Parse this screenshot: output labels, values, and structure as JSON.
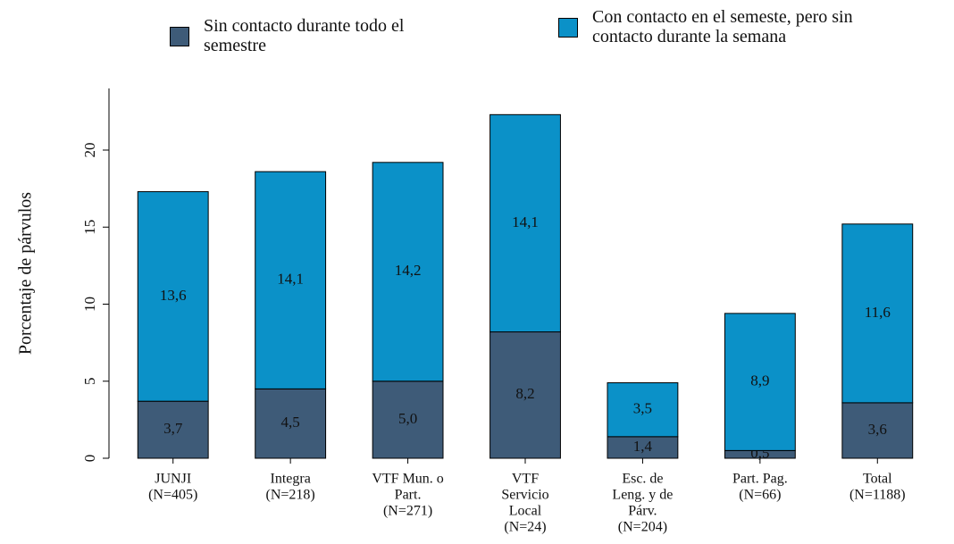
{
  "chart_data": {
    "type": "stacked_bar",
    "ylabel": "Porcentaje de párvulos",
    "categories": [
      [
        "JUNJI",
        "(N=405)"
      ],
      [
        "Integra",
        "(N=218)"
      ],
      [
        "VTF Mun. o",
        "Part.",
        "(N=271)"
      ],
      [
        "VTF",
        "Servicio",
        "Local",
        "(N=24)"
      ],
      [
        "Esc. de",
        "Leng. y de",
        "Párv.",
        "(N=204)"
      ],
      [
        "Part. Pag.",
        "(N=66)"
      ],
      [
        "Total",
        "(N=1188)"
      ]
    ],
    "series": [
      {
        "name": "Sin contacto durante todo el semestre",
        "color": "#3e5b78",
        "values": [
          3.7,
          4.5,
          5.0,
          8.2,
          1.4,
          0.5,
          3.6
        ],
        "value_labels": [
          "3,7",
          "4,5",
          "5,0",
          "8,2",
          "1,4",
          "0,5",
          "3,6"
        ]
      },
      {
        "name": "Con contacto en el semeste, pero sin contacto durante la semana",
        "color": "#0b91c8",
        "values": [
          13.6,
          14.1,
          14.2,
          14.1,
          3.5,
          8.9,
          11.6
        ],
        "value_labels": [
          "13,6",
          "14,1",
          "14,2",
          "14,1",
          "3,5",
          "8,9",
          "11,6"
        ]
      }
    ],
    "ylim": [
      0,
      24
    ],
    "yticks": [
      0,
      5,
      10,
      15,
      20
    ],
    "grid": false,
    "legend": "top"
  }
}
